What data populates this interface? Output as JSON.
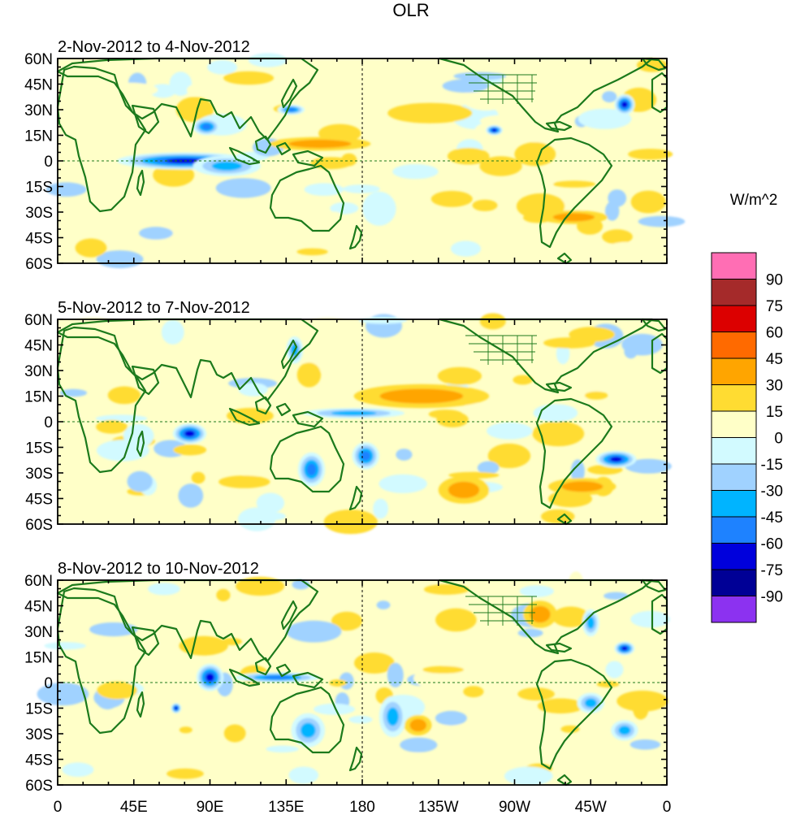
{
  "figure": {
    "title": "OLR",
    "colorbar_unit": "W/m^2"
  },
  "panels": [
    {
      "label": "2-Nov-2012 to 4-Nov-2012"
    },
    {
      "label": "5-Nov-2012 to 7-Nov-2012"
    },
    {
      "label": "8-Nov-2012 to 10-Nov-2012"
    }
  ],
  "lat_ticks": [
    "60N",
    "45N",
    "30N",
    "15N",
    "0",
    "15S",
    "30S",
    "45S",
    "60S"
  ],
  "lon_ticks": [
    "0",
    "45E",
    "90E",
    "135E",
    "180",
    "135W",
    "90W",
    "45W",
    "0"
  ],
  "colorbar": {
    "labels": [
      "90",
      "75",
      "60",
      "45",
      "30",
      "15",
      "0",
      "-15",
      "-30",
      "-45",
      "-60",
      "-75",
      "-90"
    ],
    "colors": [
      "#ff6eb4",
      "#a52a2a",
      "#dc0000",
      "#ff6a00",
      "#ffa500",
      "#ffdc32",
      "#ffffc8",
      "#d2faff",
      "#a0d2ff",
      "#00b4ff",
      "#1e82ff",
      "#0000dc",
      "#000096",
      "#8c32f0"
    ]
  },
  "chart_data": {
    "type": "heatmap",
    "variable": "OLR",
    "units": "W/m^2",
    "longitude_range_deg": [
      0,
      360
    ],
    "latitude_range_deg": [
      -60,
      60
    ],
    "color_levels": [
      -90,
      -75,
      -60,
      -45,
      -30,
      -15,
      0,
      15,
      30,
      45,
      60,
      75,
      90
    ],
    "panels": [
      {
        "label": "2-Nov-2012 to 4-Nov-2012",
        "features": [
          {
            "lon": 75,
            "lat": 0,
            "value": -75,
            "extent": [
              40,
              5
            ]
          },
          {
            "lon": 100,
            "lat": -3,
            "value": -50,
            "extent": [
              20,
              6
            ]
          },
          {
            "lon": 88,
            "lat": 20,
            "value": -70,
            "extent": [
              8,
              5
            ]
          },
          {
            "lon": 138,
            "lat": 30,
            "value": -70,
            "extent": [
              8,
              3
            ]
          },
          {
            "lon": 155,
            "lat": 10,
            "value": 30,
            "extent": [
              30,
              4
            ]
          },
          {
            "lon": 220,
            "lat": 28,
            "value": 25,
            "extent": [
              25,
              6
            ]
          },
          {
            "lon": 258,
            "lat": 18,
            "value": -80,
            "extent": [
              5,
              3
            ]
          },
          {
            "lon": 335,
            "lat": 33,
            "value": -75,
            "extent": [
              6,
              6
            ]
          },
          {
            "lon": 305,
            "lat": -33,
            "value": 35,
            "extent": [
              20,
              4
            ]
          },
          {
            "lon": 190,
            "lat": -28,
            "value": -25,
            "extent": [
              10,
              10
            ]
          }
        ]
      },
      {
        "label": "5-Nov-2012 to 7-Nov-2012",
        "features": [
          {
            "lon": 78,
            "lat": -7,
            "value": -75,
            "extent": [
              10,
              6
            ]
          },
          {
            "lon": 150,
            "lat": -28,
            "value": -70,
            "extent": [
              8,
              10
            ]
          },
          {
            "lon": 175,
            "lat": 5,
            "value": -55,
            "extent": [
              30,
              3
            ]
          },
          {
            "lon": 182,
            "lat": -20,
            "value": -65,
            "extent": [
              8,
              8
            ]
          },
          {
            "lon": 140,
            "lat": 42,
            "value": -45,
            "extent": [
              5,
              8
            ]
          },
          {
            "lon": 215,
            "lat": 15,
            "value": 30,
            "extent": [
              40,
              7
            ]
          },
          {
            "lon": 240,
            "lat": -40,
            "value": 30,
            "extent": [
              15,
              8
            ]
          },
          {
            "lon": 330,
            "lat": -22,
            "value": -80,
            "extent": [
              12,
              5
            ]
          },
          {
            "lon": 310,
            "lat": -38,
            "value": 35,
            "extent": [
              20,
              5
            ]
          }
        ]
      },
      {
        "label": "8-Nov-2012 to 10-Nov-2012",
        "features": [
          {
            "lon": 90,
            "lat": 3,
            "value": -75,
            "extent": [
              8,
              8
            ]
          },
          {
            "lon": 70,
            "lat": -15,
            "value": -80,
            "extent": [
              3,
              3
            ]
          },
          {
            "lon": 130,
            "lat": 3,
            "value": -60,
            "extent": [
              25,
              3
            ]
          },
          {
            "lon": 148,
            "lat": -28,
            "value": -55,
            "extent": [
              10,
              10
            ]
          },
          {
            "lon": 198,
            "lat": -20,
            "value": -50,
            "extent": [
              8,
              12
            ]
          },
          {
            "lon": 213,
            "lat": -25,
            "value": 35,
            "extent": [
              8,
              6
            ]
          },
          {
            "lon": 315,
            "lat": 35,
            "value": -55,
            "extent": [
              5,
              8
            ]
          },
          {
            "lon": 335,
            "lat": 20,
            "value": -80,
            "extent": [
              6,
              4
            ]
          },
          {
            "lon": 315,
            "lat": -12,
            "value": -55,
            "extent": [
              8,
              6
            ]
          },
          {
            "lon": 335,
            "lat": -28,
            "value": -50,
            "extent": [
              8,
              6
            ]
          },
          {
            "lon": 285,
            "lat": 40,
            "value": 35,
            "extent": [
              10,
              8
            ]
          }
        ]
      }
    ]
  }
}
